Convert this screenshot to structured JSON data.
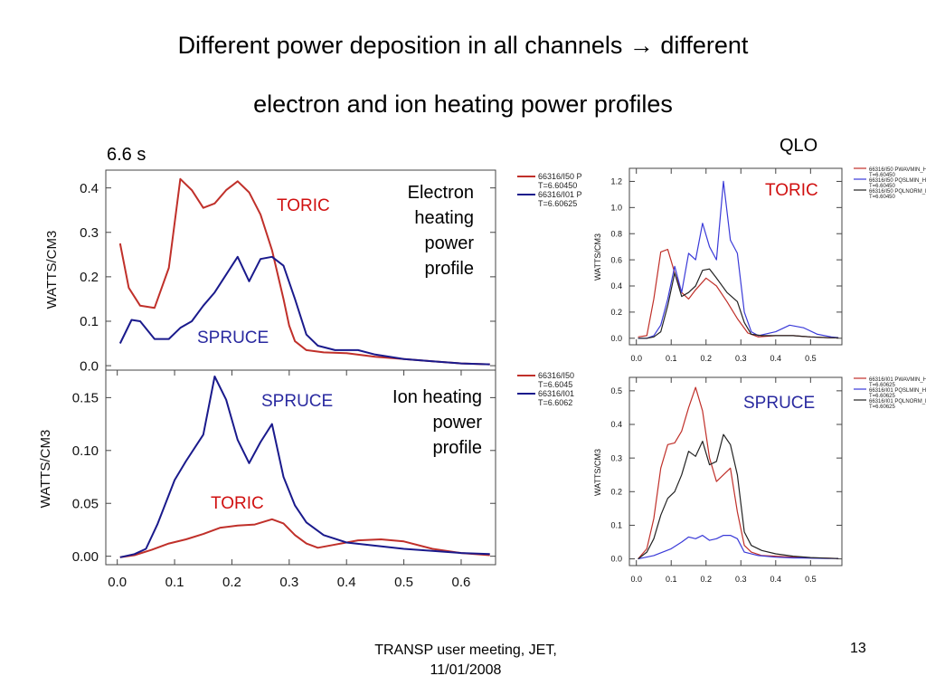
{
  "slide": {
    "title_line1": "Different power deposition in all channels → different",
    "title_line2": "electron and ion heating power profiles",
    "time_label": "6.6 s",
    "qlo_label": "QLO",
    "electron_desc": [
      "Electron",
      "heating",
      "power",
      "profile"
    ],
    "ion_desc": [
      "Ion heating",
      "power",
      "profile"
    ],
    "footer_line1": "TRANSP user meeting, JET,",
    "footer_line2": "11/01/2008",
    "page_number": "13"
  },
  "colors": {
    "toric": "#c0302a",
    "spruce": "#1a1a8c",
    "black": "#222222",
    "blue_small": "#3a3ad8",
    "label_red": "#d01010",
    "label_blue": "#2a2aa0"
  },
  "chart_data": [
    {
      "id": "electron_main",
      "type": "line",
      "ylabel": "WATTS/CM3",
      "xlim": [
        -0.02,
        0.66
      ],
      "ylim": [
        -0.01,
        0.44
      ],
      "yticks": [
        "0.0",
        "0.1",
        "0.2",
        "0.3",
        "0.4"
      ],
      "ytick_values": [
        0,
        0.1,
        0.2,
        0.3,
        0.4
      ],
      "legend": [
        "66316/I50 P",
        "T=6.60450",
        "66316/I01 P",
        "T=6.60625"
      ],
      "annotations": [
        "TORIC",
        "SPRUCE"
      ],
      "series": [
        {
          "name": "TORIC",
          "x": [
            0.005,
            0.02,
            0.04,
            0.065,
            0.09,
            0.11,
            0.13,
            0.15,
            0.17,
            0.19,
            0.21,
            0.23,
            0.25,
            0.27,
            0.29,
            0.3,
            0.31,
            0.33,
            0.36,
            0.4,
            0.45,
            0.5,
            0.55,
            0.6,
            0.65
          ],
          "y": [
            0.275,
            0.175,
            0.135,
            0.13,
            0.22,
            0.42,
            0.395,
            0.355,
            0.365,
            0.395,
            0.415,
            0.39,
            0.34,
            0.26,
            0.15,
            0.09,
            0.055,
            0.035,
            0.03,
            0.028,
            0.02,
            0.015,
            0.01,
            0.005,
            0.003
          ]
        },
        {
          "name": "SPRUCE",
          "x": [
            0.005,
            0.025,
            0.04,
            0.065,
            0.09,
            0.11,
            0.13,
            0.15,
            0.17,
            0.19,
            0.21,
            0.23,
            0.25,
            0.27,
            0.29,
            0.31,
            0.33,
            0.35,
            0.38,
            0.42,
            0.45,
            0.5,
            0.55,
            0.6,
            0.65
          ],
          "y": [
            0.05,
            0.103,
            0.1,
            0.06,
            0.06,
            0.085,
            0.1,
            0.135,
            0.165,
            0.205,
            0.245,
            0.19,
            0.24,
            0.245,
            0.225,
            0.15,
            0.07,
            0.045,
            0.035,
            0.035,
            0.025,
            0.015,
            0.01,
            0.005,
            0.003
          ]
        }
      ]
    },
    {
      "id": "ion_main",
      "type": "line",
      "ylabel": "WATTS/CM3",
      "xlim": [
        -0.02,
        0.66
      ],
      "ylim": [
        -0.008,
        0.176
      ],
      "yticks": [
        "0.00",
        "0.05",
        "0.10",
        "0.15"
      ],
      "ytick_values": [
        0,
        0.05,
        0.1,
        0.15
      ],
      "xticks": [
        "0.0",
        "0.1",
        "0.2",
        "0.3",
        "0.4",
        "0.5",
        "0.6"
      ],
      "xtick_values": [
        0,
        0.1,
        0.2,
        0.3,
        0.4,
        0.5,
        0.6
      ],
      "legend": [
        "66316/I50",
        "T=6.6045",
        "66316/I01",
        "T=6.6062"
      ],
      "annotations": [
        "SPRUCE",
        "TORIC"
      ],
      "series": [
        {
          "name": "TORIC",
          "x": [
            0.005,
            0.03,
            0.06,
            0.09,
            0.12,
            0.15,
            0.18,
            0.21,
            0.24,
            0.27,
            0.29,
            0.31,
            0.33,
            0.35,
            0.38,
            0.42,
            0.46,
            0.5,
            0.55,
            0.6,
            0.65
          ],
          "y": [
            -0.001,
            0.001,
            0.006,
            0.012,
            0.016,
            0.021,
            0.027,
            0.029,
            0.03,
            0.035,
            0.031,
            0.02,
            0.012,
            0.008,
            0.011,
            0.015,
            0.016,
            0.014,
            0.007,
            0.003,
            0.001
          ]
        },
        {
          "name": "SPRUCE",
          "x": [
            0.005,
            0.03,
            0.05,
            0.07,
            0.1,
            0.12,
            0.15,
            0.17,
            0.19,
            0.21,
            0.23,
            0.25,
            0.27,
            0.29,
            0.31,
            0.33,
            0.36,
            0.4,
            0.45,
            0.5,
            0.55,
            0.6,
            0.65
          ],
          "y": [
            -0.001,
            0.002,
            0.007,
            0.03,
            0.072,
            0.09,
            0.115,
            0.17,
            0.148,
            0.11,
            0.088,
            0.108,
            0.125,
            0.075,
            0.048,
            0.032,
            0.02,
            0.013,
            0.01,
            0.007,
            0.005,
            0.003,
            0.002
          ]
        }
      ]
    },
    {
      "id": "electron_qlo",
      "type": "line",
      "ylabel": "WATTS/CM3",
      "xlim": [
        -0.02,
        0.59
      ],
      "ylim": [
        -0.05,
        1.3
      ],
      "yticks": [
        "0.0",
        "0.2",
        "0.4",
        "0.6",
        "0.8",
        "1.0",
        "1.2"
      ],
      "ytick_values": [
        0,
        0.2,
        0.4,
        0.6,
        0.8,
        1.0,
        1.2
      ],
      "xticks": [
        "0.0",
        "0.1",
        "0.2",
        "0.3",
        "0.4",
        "0.5"
      ],
      "xtick_values": [
        0,
        0.1,
        0.2,
        0.3,
        0.4,
        0.5
      ],
      "legend": [
        "66316/I50 PWAVMIN_H",
        "T=6.60450",
        "66316/I50 PQSLMIN_H",
        "T=6.60450",
        "66316/I50 PQLNORM_H",
        "T=6.60450"
      ],
      "annotations": [
        "TORIC"
      ],
      "series": [
        {
          "name": "PWAVMIN_H",
          "x": [
            0.005,
            0.03,
            0.05,
            0.07,
            0.09,
            0.11,
            0.13,
            0.15,
            0.17,
            0.2,
            0.23,
            0.26,
            0.29,
            0.32,
            0.35,
            0.4,
            0.45,
            0.5,
            0.55,
            0.58
          ],
          "y": [
            0.01,
            0.02,
            0.3,
            0.66,
            0.68,
            0.5,
            0.35,
            0.3,
            0.37,
            0.46,
            0.4,
            0.28,
            0.15,
            0.04,
            0.01,
            0.02,
            0.02,
            0.01,
            0.005,
            0.005
          ]
        },
        {
          "name": "PQSLMIN_H",
          "x": [
            0.005,
            0.03,
            0.05,
            0.07,
            0.09,
            0.11,
            0.13,
            0.15,
            0.17,
            0.19,
            0.21,
            0.23,
            0.25,
            0.27,
            0.29,
            0.31,
            0.33,
            0.35,
            0.4,
            0.44,
            0.48,
            0.52,
            0.56,
            0.58
          ],
          "y": [
            0.0,
            0.0,
            0.02,
            0.1,
            0.3,
            0.55,
            0.35,
            0.65,
            0.6,
            0.88,
            0.7,
            0.6,
            1.2,
            0.75,
            0.65,
            0.2,
            0.05,
            0.02,
            0.05,
            0.1,
            0.08,
            0.03,
            0.01,
            0.005
          ]
        },
        {
          "name": "PQLNORM_H",
          "x": [
            0.005,
            0.03,
            0.05,
            0.07,
            0.09,
            0.11,
            0.13,
            0.15,
            0.17,
            0.19,
            0.21,
            0.23,
            0.26,
            0.29,
            0.31,
            0.33,
            0.36,
            0.4,
            0.45,
            0.5,
            0.55,
            0.58
          ],
          "y": [
            0.0,
            0.0,
            0.01,
            0.05,
            0.25,
            0.5,
            0.32,
            0.35,
            0.4,
            0.52,
            0.53,
            0.46,
            0.35,
            0.28,
            0.12,
            0.03,
            0.02,
            0.02,
            0.02,
            0.01,
            0.005,
            0.003
          ]
        }
      ]
    },
    {
      "id": "ion_qlo",
      "type": "line",
      "ylabel": "WATTS/CM3",
      "xlim": [
        -0.02,
        0.59
      ],
      "ylim": [
        -0.02,
        0.54
      ],
      "yticks": [
        "0.0",
        "0.1",
        "0.2",
        "0.3",
        "0.4",
        "0.5"
      ],
      "ytick_values": [
        0,
        0.1,
        0.2,
        0.3,
        0.4,
        0.5
      ],
      "xticks": [
        "0.0",
        "0.1",
        "0.2",
        "0.3",
        "0.4",
        "0.5"
      ],
      "xtick_values": [
        0,
        0.1,
        0.2,
        0.3,
        0.4,
        0.5
      ],
      "legend": [
        "66316/I01 PWAVMIN_H",
        "T=6.60625",
        "66316/I01 PQSLMIN_H",
        "T=6.60625",
        "66316/I01 PQLNORM_H",
        "T=6.60625"
      ],
      "annotations": [
        "SPRUCE"
      ],
      "series": [
        {
          "name": "PWAVMIN_H",
          "x": [
            0.005,
            0.03,
            0.05,
            0.07,
            0.09,
            0.11,
            0.13,
            0.15,
            0.17,
            0.19,
            0.21,
            0.23,
            0.25,
            0.27,
            0.29,
            0.31,
            0.33,
            0.36,
            0.4,
            0.45,
            0.5,
            0.55,
            0.58
          ],
          "y": [
            0.0,
            0.03,
            0.12,
            0.27,
            0.34,
            0.345,
            0.38,
            0.45,
            0.51,
            0.44,
            0.3,
            0.23,
            0.25,
            0.27,
            0.14,
            0.04,
            0.02,
            0.01,
            0.008,
            0.005,
            0.003,
            0.002,
            0.001
          ]
        },
        {
          "name": "PQSLMIN_H",
          "x": [
            0.005,
            0.05,
            0.1,
            0.13,
            0.15,
            0.17,
            0.19,
            0.21,
            0.23,
            0.25,
            0.27,
            0.29,
            0.31,
            0.35,
            0.4,
            0.45,
            0.5,
            0.55,
            0.58
          ],
          "y": [
            0.0,
            0.01,
            0.03,
            0.05,
            0.065,
            0.06,
            0.07,
            0.055,
            0.06,
            0.07,
            0.07,
            0.06,
            0.02,
            0.01,
            0.005,
            0.003,
            0.002,
            0.001,
            0.001
          ]
        },
        {
          "name": "PQLNORM_H",
          "x": [
            0.005,
            0.03,
            0.05,
            0.07,
            0.09,
            0.11,
            0.13,
            0.15,
            0.17,
            0.19,
            0.21,
            0.23,
            0.25,
            0.27,
            0.29,
            0.31,
            0.33,
            0.36,
            0.4,
            0.45,
            0.5,
            0.55,
            0.58
          ],
          "y": [
            0.0,
            0.02,
            0.06,
            0.13,
            0.18,
            0.2,
            0.25,
            0.32,
            0.305,
            0.35,
            0.28,
            0.29,
            0.37,
            0.34,
            0.25,
            0.08,
            0.04,
            0.025,
            0.015,
            0.008,
            0.004,
            0.002,
            0.001
          ]
        }
      ]
    }
  ]
}
